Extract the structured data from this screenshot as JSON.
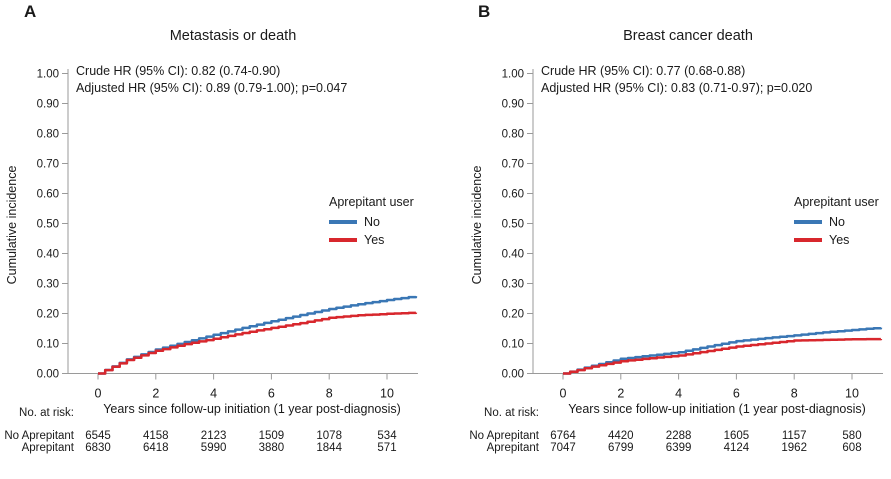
{
  "figure": {
    "background": "#ffffff",
    "colors": {
      "no": "#3a77b5",
      "yes": "#d8272d",
      "axis": "#9a9a9a",
      "text": "#1a1a1a"
    },
    "legend_title": "Aprepitant user",
    "ylabel": "Cumulative incidence",
    "xlabel": "Years since follow-up initiation (1 year post-diagnosis)",
    "risk_header": "No. at risk:",
    "panels": [
      {
        "letter": "A",
        "title": "Metastasis or death",
        "annotation_line1": "Crude HR (95% CI): 0.82 (0.74-0.90)",
        "annotation_line2": "Adjusted HR (95% CI): 0.89 (0.79-1.00); p=0.047",
        "risk_table": {
          "rows": [
            {
              "label": "No Aprepitant",
              "values": [
                "6545",
                "4158",
                "2123",
                "1509",
                "1078",
                "534"
              ]
            },
            {
              "label": "Aprepitant",
              "values": [
                "6830",
                "6418",
                "5990",
                "3880",
                "1844",
                "571"
              ]
            }
          ]
        }
      },
      {
        "letter": "B",
        "title": "Breast cancer death",
        "annotation_line1": "Crude HR (95% CI): 0.77 (0.68-0.88)",
        "annotation_line2": "Adjusted HR (95% CI): 0.83 (0.71-0.97); p=0.020",
        "risk_table": {
          "rows": [
            {
              "label": "No Aprepitant",
              "values": [
                "6764",
                "4420",
                "2288",
                "1605",
                "1157",
                "580"
              ]
            },
            {
              "label": "Aprepitant",
              "values": [
                "7047",
                "6799",
                "6399",
                "4124",
                "1962",
                "608"
              ]
            }
          ]
        }
      }
    ]
  },
  "chart_data": [
    {
      "type": "line",
      "title": "Metastasis or death",
      "subtitle": "Cumulative incidence (Kaplan-Meier style step curves)",
      "xlabel": "Years since follow-up initiation (1 year post-diagnosis)",
      "ylabel": "Cumulative incidence",
      "annotations": [
        "Crude HR (95% CI): 0.82 (0.74-0.90)",
        "Adjusted HR (95% CI): 0.89 (0.79-1.00); p=0.047"
      ],
      "x": [
        0,
        1,
        2,
        3,
        4,
        5,
        6,
        7,
        8,
        9,
        10,
        11
      ],
      "series": [
        {
          "name": "No",
          "color": "#3a77b5",
          "values": [
            0,
            0.047,
            0.08,
            0.105,
            0.129,
            0.152,
            0.174,
            0.195,
            0.215,
            0.231,
            0.245,
            0.258
          ]
        },
        {
          "name": "Yes",
          "color": "#d8272d",
          "values": [
            0,
            0.045,
            0.076,
            0.098,
            0.116,
            0.135,
            0.152,
            0.168,
            0.186,
            0.194,
            0.199,
            0.203
          ]
        }
      ],
      "xlim": [
        -1.05,
        11.1
      ],
      "ylim": [
        0,
        1.0
      ],
      "xticks": [
        0,
        2,
        4,
        6,
        8,
        10
      ],
      "yticks": [
        0,
        0.1,
        0.2,
        0.3,
        0.4,
        0.5,
        0.6,
        0.7,
        0.8,
        0.9,
        1.0
      ],
      "grid": false,
      "legend_title": "Aprepitant user",
      "legend_position": "right-middle"
    },
    {
      "type": "line",
      "title": "Breast cancer death",
      "subtitle": "Cumulative incidence (Kaplan-Meier style step curves)",
      "xlabel": "Years since follow-up initiation (1 year post-diagnosis)",
      "ylabel": "Cumulative incidence",
      "annotations": [
        "Crude HR (95% CI): 0.77 (0.68-0.88)",
        "Adjusted HR (95% CI): 0.83 (0.71-0.97); p=0.020"
      ],
      "x": [
        0,
        1,
        2,
        3,
        4,
        5,
        6,
        7,
        8,
        9,
        10,
        11
      ],
      "series": [
        {
          "name": "No",
          "color": "#3a77b5",
          "values": [
            0,
            0.026,
            0.049,
            0.06,
            0.071,
            0.09,
            0.108,
            0.118,
            0.127,
            0.137,
            0.145,
            0.153
          ]
        },
        {
          "name": "Yes",
          "color": "#d8272d",
          "values": [
            0,
            0.023,
            0.041,
            0.051,
            0.06,
            0.075,
            0.09,
            0.1,
            0.11,
            0.112,
            0.114,
            0.115
          ]
        }
      ],
      "xlim": [
        -1.05,
        11.1
      ],
      "ylim": [
        0,
        1.0
      ],
      "xticks": [
        0,
        2,
        4,
        6,
        8,
        10
      ],
      "yticks": [
        0,
        0.1,
        0.2,
        0.3,
        0.4,
        0.5,
        0.6,
        0.7,
        0.8,
        0.9,
        1.0
      ],
      "grid": false,
      "legend_title": "Aprepitant user",
      "legend_position": "right-middle"
    }
  ]
}
